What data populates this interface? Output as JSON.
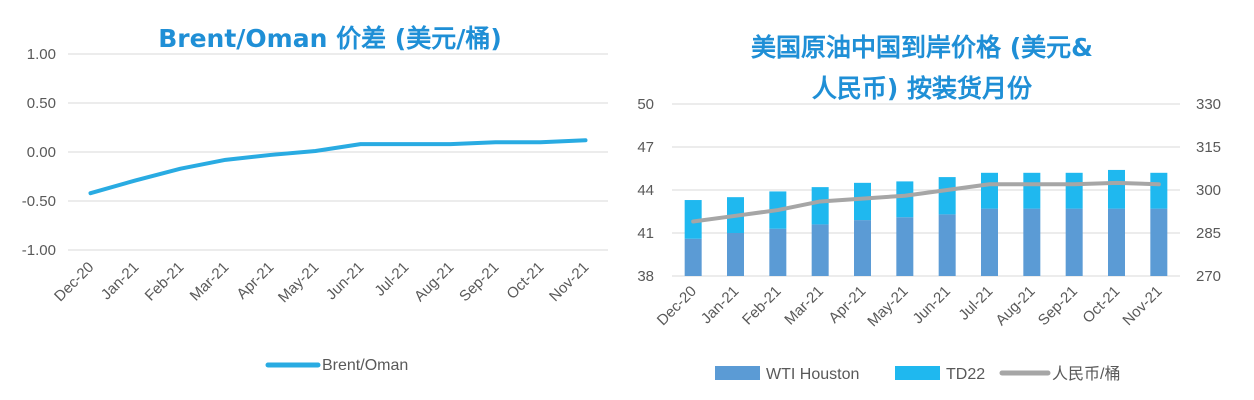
{
  "colors": {
    "line_blue": "#29abe2",
    "title_blue": "#1f8fd6",
    "wti_bar": "#5b9bd5",
    "td22_bar": "#1fb8ef",
    "rmb_line": "#a6a6a6",
    "grid": "#d9d9d9",
    "text": "#595959"
  },
  "chart_data": [
    {
      "type": "line",
      "title": "Brent/Oman 价差 (美元/桶)",
      "categories": [
        "Dec-20",
        "Jan-21",
        "Feb-21",
        "Mar-21",
        "Apr-21",
        "May-21",
        "Jun-21",
        "Jul-21",
        "Aug-21",
        "Sep-21",
        "Oct-21",
        "Nov-21"
      ],
      "series": [
        {
          "name": "Brent/Oman",
          "values": [
            -0.42,
            -0.29,
            -0.17,
            -0.08,
            -0.03,
            0.01,
            0.08,
            0.08,
            0.08,
            0.1,
            0.1,
            0.12
          ]
        }
      ],
      "ylim": [
        -1.0,
        1.0
      ],
      "yticks": [
        "1.00",
        "0.50",
        "0.00",
        "-0.50",
        "-1.00"
      ],
      "yticks_values": [
        1.0,
        0.5,
        0.0,
        -0.5,
        -1.0
      ],
      "grid": true,
      "legend_position": "bottom"
    },
    {
      "type": "bar",
      "title_lines": [
        "美国原油中国到岸价格 (美元&",
        "人民币) 按装货月份"
      ],
      "categories": [
        "Dec-20",
        "Jan-21",
        "Feb-21",
        "Mar-21",
        "Apr-21",
        "May-21",
        "Jun-21",
        "Jul-21",
        "Aug-21",
        "Sep-21",
        "Oct-21",
        "Nov-21"
      ],
      "series": [
        {
          "name": "WTI Houston",
          "kind": "stacked-bar",
          "axis": "left",
          "values": [
            40.6,
            41.0,
            41.3,
            41.6,
            41.9,
            42.1,
            42.3,
            42.7,
            42.7,
            42.7,
            42.7,
            42.7
          ]
        },
        {
          "name": "TD22",
          "kind": "stacked-bar",
          "axis": "left",
          "values": [
            2.7,
            2.5,
            2.6,
            2.6,
            2.6,
            2.5,
            2.6,
            2.5,
            2.5,
            2.5,
            2.7,
            2.5
          ]
        },
        {
          "name": "人民币/桶",
          "kind": "line",
          "axis": "right",
          "values": [
            289.0,
            291.0,
            293.0,
            296.0,
            297.0,
            298.0,
            300.0,
            302.0,
            302.0,
            302.0,
            302.5,
            302.0
          ]
        }
      ],
      "ylim_left": [
        38,
        50
      ],
      "yticks_left": [
        "50",
        "47",
        "44",
        "41",
        "38"
      ],
      "yticks_left_values": [
        50,
        47,
        44,
        41,
        38
      ],
      "ylim_right": [
        270,
        330
      ],
      "yticks_right": [
        "330",
        "315",
        "300",
        "285",
        "270"
      ],
      "yticks_right_values": [
        330,
        315,
        300,
        285,
        270
      ],
      "grid": true,
      "legend_position": "bottom"
    }
  ]
}
